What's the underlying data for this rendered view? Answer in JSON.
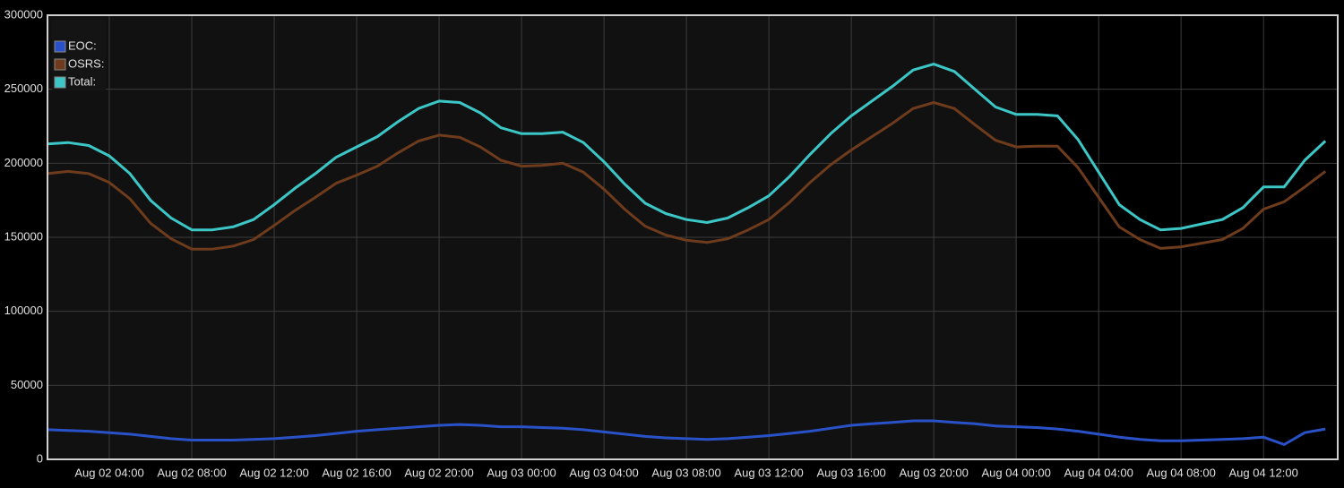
{
  "chart_data": {
    "type": "line",
    "x": [
      "Aug 02 01:00",
      "Aug 02 02:00",
      "Aug 02 03:00",
      "Aug 02 04:00",
      "Aug 02 05:00",
      "Aug 02 06:00",
      "Aug 02 07:00",
      "Aug 02 08:00",
      "Aug 02 09:00",
      "Aug 02 10:00",
      "Aug 02 11:00",
      "Aug 02 12:00",
      "Aug 02 13:00",
      "Aug 02 14:00",
      "Aug 02 15:00",
      "Aug 02 16:00",
      "Aug 02 17:00",
      "Aug 02 18:00",
      "Aug 02 19:00",
      "Aug 02 20:00",
      "Aug 02 21:00",
      "Aug 02 22:00",
      "Aug 02 23:00",
      "Aug 03 00:00",
      "Aug 03 01:00",
      "Aug 03 02:00",
      "Aug 03 03:00",
      "Aug 03 04:00",
      "Aug 03 05:00",
      "Aug 03 06:00",
      "Aug 03 07:00",
      "Aug 03 08:00",
      "Aug 03 09:00",
      "Aug 03 10:00",
      "Aug 03 11:00",
      "Aug 03 12:00",
      "Aug 03 13:00",
      "Aug 03 14:00",
      "Aug 03 15:00",
      "Aug 03 16:00",
      "Aug 03 17:00",
      "Aug 03 18:00",
      "Aug 03 19:00",
      "Aug 03 20:00",
      "Aug 03 21:00",
      "Aug 03 22:00",
      "Aug 03 23:00",
      "Aug 04 00:00",
      "Aug 04 01:00",
      "Aug 04 02:00",
      "Aug 04 03:00",
      "Aug 04 04:00",
      "Aug 04 05:00",
      "Aug 04 06:00",
      "Aug 04 07:00",
      "Aug 04 08:00",
      "Aug 04 09:00",
      "Aug 04 10:00",
      "Aug 04 11:00",
      "Aug 04 12:00",
      "Aug 04 13:00",
      "Aug 04 14:00",
      "Aug 04 15:00"
    ],
    "series": [
      {
        "name": "EOC:",
        "color": "#2a52c8",
        "values": [
          20000,
          19500,
          19000,
          18000,
          17000,
          15500,
          14000,
          13000,
          13000,
          13000,
          13500,
          14000,
          15000,
          16000,
          17500,
          19000,
          20000,
          21000,
          22000,
          23000,
          23500,
          23000,
          22000,
          22000,
          21500,
          21000,
          20000,
          18500,
          17000,
          15500,
          14500,
          14000,
          13500,
          14000,
          15000,
          16000,
          17500,
          19000,
          21000,
          23000,
          24000,
          25000,
          26000,
          26000,
          25000,
          24000,
          22500,
          22000,
          21500,
          20500,
          19000,
          17000,
          15000,
          13500,
          12500,
          12500,
          13000,
          13500,
          14000,
          15000,
          10000,
          18000,
          20500
        ]
      },
      {
        "name": "OSRS:",
        "color": "#6e3b1c",
        "values": [
          193000,
          194500,
          193000,
          187000,
          176000,
          159500,
          149000,
          142000,
          142000,
          144000,
          148500,
          158000,
          168000,
          177000,
          186500,
          192000,
          198000,
          207000,
          215000,
          219000,
          217500,
          211000,
          202000,
          198000,
          198500,
          200000,
          194000,
          182500,
          169000,
          157500,
          151500,
          148000,
          146500,
          149000,
          155000,
          162000,
          173500,
          187000,
          199000,
          209000,
          218000,
          227000,
          237000,
          241000,
          237000,
          226000,
          215500,
          211000,
          211500,
          211500,
          197000,
          177000,
          157000,
          148500,
          142500,
          143500,
          146000,
          148500,
          156000,
          169000,
          174000,
          184000,
          194500
        ]
      },
      {
        "name": "Total:",
        "color": "#3cc6c6",
        "values": [
          213000,
          214000,
          212000,
          205000,
          193000,
          175000,
          163000,
          155000,
          155000,
          157000,
          162000,
          172000,
          183000,
          193000,
          204000,
          211000,
          218000,
          228000,
          237000,
          242000,
          241000,
          234000,
          224000,
          220000,
          220000,
          221000,
          214000,
          201000,
          186000,
          173000,
          166000,
          162000,
          160000,
          163000,
          170000,
          178000,
          191000,
          206000,
          220000,
          232000,
          242000,
          252000,
          263000,
          267000,
          262000,
          250000,
          238000,
          233000,
          233000,
          232000,
          216000,
          194000,
          172000,
          162000,
          155000,
          156000,
          159000,
          162000,
          170000,
          184000,
          184000,
          202000,
          215000
        ]
      }
    ],
    "xlim": [
      "Aug 02 01:00",
      "Aug 04 15:36"
    ],
    "xticks": [
      "Aug 02 04:00",
      "Aug 02 08:00",
      "Aug 02 12:00",
      "Aug 02 16:00",
      "Aug 02 20:00",
      "Aug 03 00:00",
      "Aug 03 04:00",
      "Aug 03 08:00",
      "Aug 03 12:00",
      "Aug 03 16:00",
      "Aug 03 20:00",
      "Aug 04 00:00",
      "Aug 04 04:00",
      "Aug 04 08:00",
      "Aug 04 12:00"
    ],
    "ylim": [
      0,
      300000
    ],
    "yticks": [
      0,
      50000,
      100000,
      150000,
      200000,
      250000,
      300000
    ],
    "grid": true
  }
}
